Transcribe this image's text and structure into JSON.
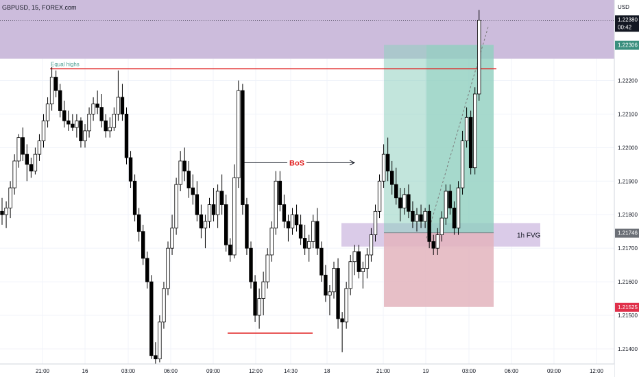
{
  "header": {
    "symbol": "GBPUSD, 15, FOREX.com",
    "currency": "USD"
  },
  "price_tags": {
    "current_price": "1.22380",
    "countdown": "00:42",
    "take_profit": "1.22306",
    "entry": "1.21746",
    "stop_loss": "1.21525"
  },
  "annotations": {
    "equal_highs": "Equal highs",
    "bos": "BoS",
    "fvg": "1h FVG"
  },
  "colors": {
    "bull_body": "#ffffff",
    "bear_body": "#000000",
    "wick": "#000000",
    "supply_zone": "#c9b8da",
    "fvg_zone": "#d6c5e6",
    "profit_zone": "#8fcfc0",
    "loss_zone": "#e3b4bd",
    "level_line": "#e02020",
    "tag_dark": "#131722",
    "tag_green": "#3a8f7e",
    "tag_gray": "#6b6f76",
    "tag_red": "#e0304a"
  },
  "chart_data": {
    "type": "candlestick",
    "y_axis_ticks": [
      "1.22300",
      "1.22200",
      "1.22100",
      "1.22000",
      "1.21900",
      "1.21800",
      "1.21700",
      "1.21600",
      "1.21500",
      "1.21400"
    ],
    "x_axis_ticks": [
      "21:00",
      "16",
      "03:00",
      "06:00",
      "09:00",
      "12:00",
      "14:30",
      "18",
      "21:00",
      "19",
      "03:00",
      "06:00",
      "09:00",
      "12:00"
    ],
    "ylim": [
      1.21355,
      1.2244
    ],
    "levels": {
      "equal_highs": 1.22235,
      "bos_level": 1.21955,
      "swing_low": 1.21447
    },
    "zones": {
      "supply": [
        1.22265,
        1.2244
      ],
      "fvg": [
        1.21705,
        1.21775
      ],
      "profit": [
        1.21746,
        1.22306
      ],
      "loss": [
        1.21525,
        1.21746
      ]
    },
    "candles": [
      [
        1.2181,
        1.2185,
        1.2177,
        1.218
      ],
      [
        1.218,
        1.2184,
        1.2176,
        1.2182
      ],
      [
        1.2182,
        1.219,
        1.2179,
        1.2188
      ],
      [
        1.2188,
        1.2198,
        1.2186,
        1.2196
      ],
      [
        1.2196,
        1.2204,
        1.2194,
        1.2203
      ],
      [
        1.2203,
        1.2206,
        1.2196,
        1.2198
      ],
      [
        1.2198,
        1.2201,
        1.219,
        1.2195
      ],
      [
        1.2195,
        1.2197,
        1.2191,
        1.2193
      ],
      [
        1.2193,
        1.22,
        1.2192,
        1.2198
      ],
      [
        1.2198,
        1.2204,
        1.2196,
        1.2202
      ],
      [
        1.2202,
        1.221,
        1.22,
        1.2208
      ],
      [
        1.2208,
        1.2215,
        1.2206,
        1.2213
      ],
      [
        1.2213,
        1.2224,
        1.2211,
        1.2221
      ],
      [
        1.2221,
        1.2223,
        1.2215,
        1.2217
      ],
      [
        1.2217,
        1.2219,
        1.2209,
        1.2211
      ],
      [
        1.2211,
        1.2214,
        1.2206,
        1.2208
      ],
      [
        1.2208,
        1.2211,
        1.2205,
        1.2207
      ],
      [
        1.2207,
        1.221,
        1.2205,
        1.2206
      ],
      [
        1.2206,
        1.221,
        1.2203,
        1.2208
      ],
      [
        1.2208,
        1.2209,
        1.22,
        1.2202
      ],
      [
        1.2202,
        1.2207,
        1.22,
        1.2205
      ],
      [
        1.2205,
        1.2212,
        1.2203,
        1.221
      ],
      [
        1.221,
        1.2215,
        1.2208,
        1.2213
      ],
      [
        1.2213,
        1.2217,
        1.221,
        1.2212
      ],
      [
        1.2212,
        1.2216,
        1.2206,
        1.2208
      ],
      [
        1.2208,
        1.221,
        1.2203,
        1.2205
      ],
      [
        1.2205,
        1.2209,
        1.2203,
        1.2206
      ],
      [
        1.2206,
        1.2212,
        1.2205,
        1.221
      ],
      [
        1.221,
        1.2223,
        1.2208,
        1.2215
      ],
      [
        1.2215,
        1.2219,
        1.2208,
        1.221
      ],
      [
        1.221,
        1.2212,
        1.2195,
        1.2197
      ],
      [
        1.2197,
        1.2199,
        1.2188,
        1.219
      ],
      [
        1.219,
        1.2192,
        1.2178,
        1.218
      ],
      [
        1.218,
        1.2182,
        1.2172,
        1.2175
      ],
      [
        1.2175,
        1.2177,
        1.2165,
        1.2167
      ],
      [
        1.2167,
        1.2169,
        1.2158,
        1.216
      ],
      [
        1.216,
        1.2162,
        1.2137,
        1.2138
      ],
      [
        1.2138,
        1.2142,
        1.2134,
        1.2137
      ],
      [
        1.2137,
        1.215,
        1.2136,
        1.2148
      ],
      [
        1.2148,
        1.216,
        1.2146,
        1.2158
      ],
      [
        1.2158,
        1.2172,
        1.2156,
        1.217
      ],
      [
        1.217,
        1.218,
        1.2168,
        1.2176
      ],
      [
        1.2176,
        1.2191,
        1.2174,
        1.2189
      ],
      [
        1.2189,
        1.2199,
        1.2187,
        1.2196
      ],
      [
        1.2196,
        1.22,
        1.219,
        1.2193
      ],
      [
        1.2193,
        1.2196,
        1.2185,
        1.2188
      ],
      [
        1.2188,
        1.2192,
        1.2183,
        1.2186
      ],
      [
        1.2186,
        1.219,
        1.2178,
        1.218
      ],
      [
        1.218,
        1.2183,
        1.2173,
        1.2176
      ],
      [
        1.2176,
        1.218,
        1.217,
        1.2178
      ],
      [
        1.2178,
        1.2185,
        1.2176,
        1.2183
      ],
      [
        1.2183,
        1.2188,
        1.2178,
        1.218
      ],
      [
        1.218,
        1.2189,
        1.2176,
        1.2187
      ],
      [
        1.2187,
        1.2192,
        1.218,
        1.2183
      ],
      [
        1.2183,
        1.2186,
        1.2169,
        1.2171
      ],
      [
        1.2171,
        1.2173,
        1.2166,
        1.2168
      ],
      [
        1.2168,
        1.2195,
        1.2167,
        1.2191
      ],
      [
        1.2191,
        1.222,
        1.2188,
        1.2217
      ],
      [
        1.2217,
        1.2219,
        1.218,
        1.2183
      ],
      [
        1.2183,
        1.2185,
        1.2168,
        1.217
      ],
      [
        1.217,
        1.2172,
        1.2158,
        1.216
      ],
      [
        1.216,
        1.2162,
        1.2148,
        1.215
      ],
      [
        1.215,
        1.2158,
        1.2146,
        1.2155
      ],
      [
        1.2155,
        1.2163,
        1.215,
        1.216
      ],
      [
        1.216,
        1.217,
        1.2158,
        1.2168
      ],
      [
        1.2168,
        1.2178,
        1.2166,
        1.2176
      ],
      [
        1.2176,
        1.2193,
        1.2174,
        1.219
      ],
      [
        1.219,
        1.2193,
        1.2181,
        1.2183
      ],
      [
        1.2183,
        1.2186,
        1.2176,
        1.2178
      ],
      [
        1.2178,
        1.218,
        1.2172,
        1.2176
      ],
      [
        1.2176,
        1.2182,
        1.2174,
        1.218
      ],
      [
        1.218,
        1.2183,
        1.2175,
        1.2177
      ],
      [
        1.2177,
        1.218,
        1.2171,
        1.2173
      ],
      [
        1.2173,
        1.2177,
        1.2168,
        1.217
      ],
      [
        1.217,
        1.2174,
        1.2166,
        1.2172
      ],
      [
        1.2172,
        1.218,
        1.217,
        1.2178
      ],
      [
        1.2178,
        1.2182,
        1.2168,
        1.217
      ],
      [
        1.217,
        1.2172,
        1.216,
        1.2162
      ],
      [
        1.2162,
        1.2165,
        1.2154,
        1.2156
      ],
      [
        1.2156,
        1.2159,
        1.215,
        1.2157
      ],
      [
        1.2157,
        1.2166,
        1.2155,
        1.2164
      ],
      [
        1.2164,
        1.2167,
        1.2146,
        1.2149
      ],
      [
        1.2149,
        1.2151,
        1.2139,
        1.2148
      ],
      [
        1.2148,
        1.216,
        1.2146,
        1.2158
      ],
      [
        1.2158,
        1.2168,
        1.2156,
        1.2166
      ],
      [
        1.2166,
        1.2171,
        1.2162,
        1.2169
      ],
      [
        1.2169,
        1.2171,
        1.2161,
        1.2163
      ],
      [
        1.2163,
        1.2166,
        1.2158,
        1.2164
      ],
      [
        1.2164,
        1.217,
        1.2161,
        1.2168
      ],
      [
        1.2168,
        1.2176,
        1.2166,
        1.2174
      ],
      [
        1.2174,
        1.2183,
        1.2172,
        1.2181
      ],
      [
        1.2181,
        1.2192,
        1.2179,
        1.219
      ],
      [
        1.219,
        1.2201,
        1.2188,
        1.2198
      ],
      [
        1.2198,
        1.2203,
        1.219,
        1.2193
      ],
      [
        1.2193,
        1.2196,
        1.2186,
        1.2189
      ],
      [
        1.2189,
        1.2194,
        1.2183,
        1.2185
      ],
      [
        1.2185,
        1.2188,
        1.2178,
        1.2182
      ],
      [
        1.2182,
        1.2188,
        1.218,
        1.2186
      ],
      [
        1.2186,
        1.2189,
        1.2179,
        1.2181
      ],
      [
        1.2181,
        1.2184,
        1.2176,
        1.2178
      ],
      [
        1.2178,
        1.2182,
        1.2175,
        1.218
      ],
      [
        1.218,
        1.2183,
        1.2176,
        1.2178
      ],
      [
        1.2178,
        1.2182,
        1.2176,
        1.2181
      ],
      [
        1.2181,
        1.2183,
        1.217,
        1.2172
      ],
      [
        1.2172,
        1.2174,
        1.2168,
        1.217
      ],
      [
        1.217,
        1.2176,
        1.2168,
        1.2174
      ],
      [
        1.2174,
        1.2181,
        1.2172,
        1.2179
      ],
      [
        1.2179,
        1.2189,
        1.2177,
        1.2187
      ],
      [
        1.2187,
        1.2189,
        1.218,
        1.2182
      ],
      [
        1.2182,
        1.2184,
        1.2174,
        1.2176
      ],
      [
        1.2176,
        1.219,
        1.2174,
        1.2188
      ],
      [
        1.2188,
        1.2205,
        1.2186,
        1.2202
      ],
      [
        1.2202,
        1.2212,
        1.22,
        1.2209
      ],
      [
        1.2209,
        1.2211,
        1.2192,
        1.2194
      ],
      [
        1.2194,
        1.2218,
        1.2192,
        1.2216
      ],
      [
        1.2216,
        1.2241,
        1.2214,
        1.2238
      ]
    ]
  }
}
